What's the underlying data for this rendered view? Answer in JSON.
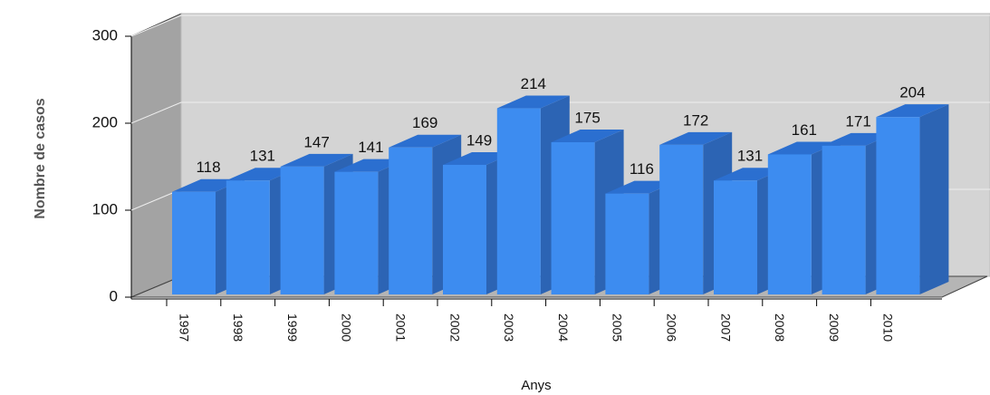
{
  "chart_data": {
    "type": "bar3d",
    "categories": [
      "1997",
      "1998",
      "1999",
      "2000",
      "2001",
      "2002",
      "2003",
      "2004",
      "2005",
      "2006",
      "2007",
      "2008",
      "2009",
      "2010"
    ],
    "values": [
      118,
      131,
      147,
      141,
      169,
      149,
      214,
      175,
      116,
      172,
      131,
      161,
      171,
      204
    ],
    "color": "#3d8cf0",
    "ylim": [
      0,
      300
    ],
    "yticks": [
      0,
      100,
      200,
      300
    ],
    "grid": true,
    "x_label": "Anys",
    "y_label": "Nombre de casos"
  }
}
